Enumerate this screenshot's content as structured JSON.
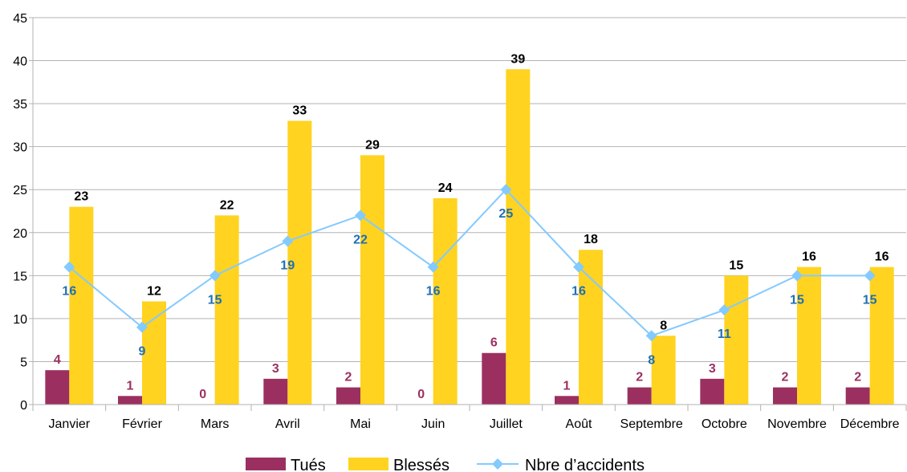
{
  "chart_data": {
    "type": "bar",
    "categories": [
      "Janvier",
      "Février",
      "Mars",
      "Avril",
      "Mai",
      "Juin",
      "Juillet",
      "Août",
      "Septembre",
      "Octobre",
      "Novembre",
      "Décembre"
    ],
    "series": [
      {
        "name": "Tués",
        "kind": "bar",
        "color": "#9b3060",
        "label_color": "#9b3060",
        "values": [
          4,
          1,
          0,
          3,
          2,
          0,
          6,
          1,
          2,
          3,
          2,
          2
        ]
      },
      {
        "name": "Blessés",
        "kind": "bar",
        "color": "#ffd320",
        "label_color": "#000000",
        "values": [
          23,
          12,
          22,
          33,
          29,
          24,
          39,
          18,
          8,
          15,
          16,
          16
        ]
      },
      {
        "name": "Nbre d’accidents",
        "kind": "line",
        "color": "#83caff",
        "label_color": "#1f6fb4",
        "values": [
          16,
          9,
          15,
          19,
          22,
          16,
          25,
          16,
          8,
          11,
          15,
          15
        ]
      }
    ],
    "ylim": [
      0,
      45
    ],
    "yticks": [
      0,
      5,
      10,
      15,
      20,
      25,
      30,
      35,
      40,
      45
    ],
    "grid": true,
    "legend_position": "bottom"
  }
}
